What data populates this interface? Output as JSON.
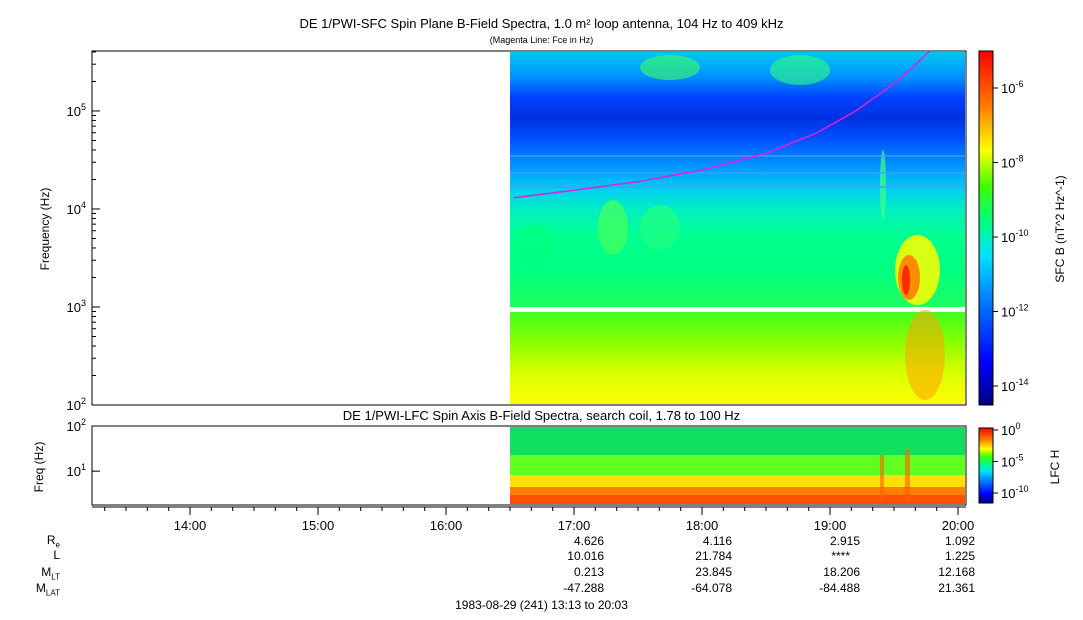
{
  "chart_data": [
    {
      "type": "heatmap",
      "title": "DE 1/PWI-SFC  Spin Plane B-Field Spectra, 1.0 m² loop antenna, 104 Hz to 409 kHz",
      "subtitle": "(Magenta Line: Fce in Hz)",
      "ylabel": "Frequency (Hz)",
      "yscale": "log",
      "ylim": [
        100,
        409000
      ],
      "y_ticks": [
        "10^2",
        "10^3",
        "10^4",
        "10^5"
      ],
      "colorbar_label": "SFC B (nT^2 Hz^-1)",
      "colorbar_ticks": [
        "10^-6",
        "10^-8",
        "10^-10",
        "10^-12",
        "10^-14"
      ],
      "colorscale": "rainbow",
      "data_start": "16:30",
      "data_end": "20:03",
      "fce_line_color": "#e020e0"
    },
    {
      "type": "heatmap",
      "title": "DE 1/PWI-LFC  Spin Axis B-Field Spectra, search coil, 1.78 to 100 Hz",
      "ylabel": "Freq (Hz)",
      "yscale": "log",
      "ylim": [
        1.78,
        100
      ],
      "y_ticks": [
        "10^2",
        "10^1"
      ],
      "colorbar_label": "LFC H",
      "colorbar_ticks": [
        "10^0",
        "10^-5",
        "10^-10"
      ],
      "colorscale": "rainbow"
    }
  ],
  "x_axis": {
    "range": [
      "13:13",
      "20:03"
    ],
    "tick_labels": [
      "14:00",
      "15:00",
      "16:00",
      "17:00",
      "18:00",
      "19:00",
      "20:00"
    ]
  },
  "ephemeris": {
    "rows": [
      {
        "label": "R",
        "sub": "e",
        "values": [
          "4.626",
          "4.116",
          "2.915",
          "1.092"
        ]
      },
      {
        "label": "L",
        "sub": "",
        "values": [
          "10.016",
          "21.784",
          "****",
          "1.225"
        ]
      },
      {
        "label": "M",
        "sub": "LT",
        "values": [
          "0.213",
          "23.845",
          "18.206",
          "12.168"
        ]
      },
      {
        "label": "M",
        "sub": "LAT",
        "values": [
          "-47.288",
          "-64.078",
          "-84.488",
          "21.361"
        ]
      }
    ],
    "columns": [
      "17:00",
      "18:00",
      "19:00",
      "20:00"
    ]
  },
  "footer": "1983-08-29 (241) 13:13 to 20:03",
  "colors": {
    "magenta": "#e020e0",
    "background": "#ffffff"
  }
}
